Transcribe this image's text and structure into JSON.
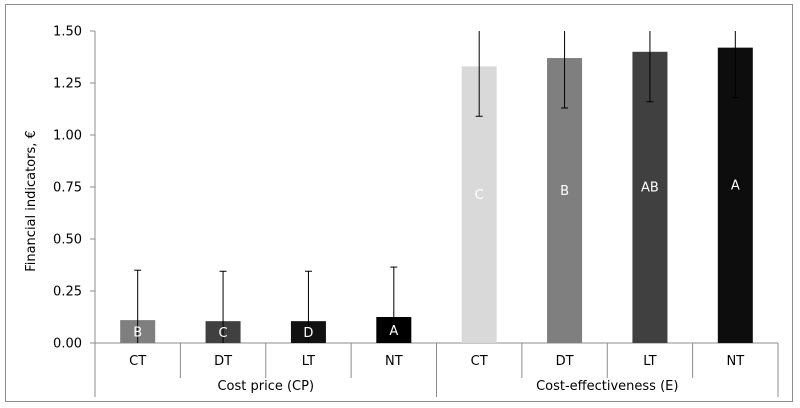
{
  "chart_data": {
    "type": "bar",
    "ylabel": "Financial indicators, €",
    "ylim": [
      0,
      1.5
    ],
    "yticks": [
      "0.00",
      "0.25",
      "0.50",
      "0.75",
      "1.00",
      "1.25",
      "1.50"
    ],
    "grid": false,
    "groups": [
      {
        "label": "Cost price (CP)",
        "categories": [
          "CT",
          "DT",
          "LT",
          "NT"
        ]
      },
      {
        "label": "Cost-effectiveness (E)",
        "categories": [
          "CT",
          "DT",
          "LT",
          "NT"
        ]
      }
    ],
    "bars": [
      {
        "group": 0,
        "category": "CT",
        "value": 0.11,
        "error": 0.24,
        "letter": "B",
        "color": "#7f7f7f",
        "letter_color": "#ffffff"
      },
      {
        "group": 0,
        "category": "DT",
        "value": 0.105,
        "error": 0.24,
        "letter": "C",
        "color": "#404040",
        "letter_color": "#ffffff"
      },
      {
        "group": 0,
        "category": "LT",
        "value": 0.105,
        "error": 0.24,
        "letter": "D",
        "color": "#111111",
        "letter_color": "#ffffff"
      },
      {
        "group": 0,
        "category": "NT",
        "value": 0.125,
        "error": 0.24,
        "letter": "A",
        "color": "#000000",
        "letter_color": "#ffffff"
      },
      {
        "group": 1,
        "category": "CT",
        "value": 1.33,
        "error": 0.24,
        "letter": "C",
        "color": "#d9d9d9",
        "letter_color": "#ffffff"
      },
      {
        "group": 1,
        "category": "DT",
        "value": 1.37,
        "error": 0.24,
        "letter": "B",
        "color": "#7f7f7f",
        "letter_color": "#ffffff"
      },
      {
        "group": 1,
        "category": "LT",
        "value": 1.4,
        "error": 0.24,
        "letter": "AB",
        "color": "#404040",
        "letter_color": "#ffffff"
      },
      {
        "group": 1,
        "category": "NT",
        "value": 1.42,
        "error": 0.24,
        "letter": "A",
        "color": "#0d0d0d",
        "letter_color": "#ffffff"
      }
    ]
  }
}
